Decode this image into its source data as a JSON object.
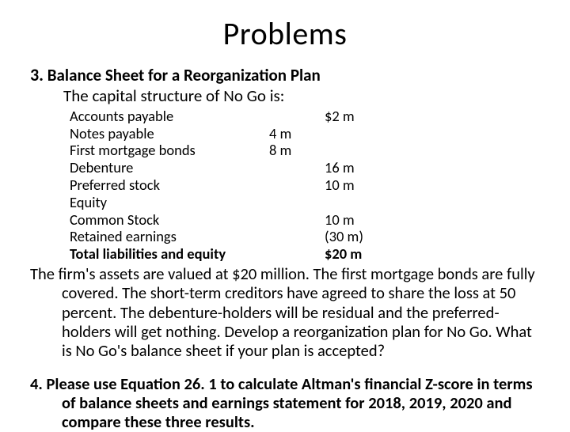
{
  "title": "Problems",
  "problem3": {
    "number": "3.",
    "heading": "Balance Sheet for a Reorganization Plan",
    "subtitle": "The capital structure of No Go is:",
    "rows": [
      {
        "label": "Accounts payable",
        "col1": "",
        "col2": "$2 m"
      },
      {
        "label": "Notes payable",
        "col1": "4 m",
        "col2": ""
      },
      {
        "label": "First mortgage bonds",
        "col1": "8 m",
        "col2": ""
      },
      {
        "label": "Debenture",
        "col1": "",
        "col2": "16 m"
      },
      {
        "label": "Preferred stock",
        "col1": "",
        "col2": "10 m"
      },
      {
        "label": "Equity",
        "col1": "",
        "col2": ""
      },
      {
        "label": "Common Stock",
        "col1": "",
        "col2": "10 m"
      },
      {
        "label": "Retained earnings",
        "col1": "",
        "col2": "(30 m)"
      }
    ],
    "totalRow": {
      "label": "Total liabilities and equity",
      "col1": "",
      "col2": "$20 m"
    },
    "paragraph": "The firm's assets are valued at $20 million. The first mortgage bonds are fully covered. The short-term creditors have agreed to share the loss at 50 percent. The debenture-holders will be residual and the preferred-holders will get nothing. Develop a reorganization plan for No Go. What is No Go's balance sheet if your plan is accepted?"
  },
  "problem4": {
    "number": "4.",
    "text": "Please use Equation 26. 1 to calculate Altman's financial Z-score in terms of balance sheets and earnings statement for 2018, 2019, 2020 and compare these three results."
  },
  "style": {
    "background_color": "#ffffff",
    "text_color": "#000000",
    "title_fontsize": 40,
    "heading_fontsize": 21,
    "body_fontsize": 20.5,
    "table_fontsize": 18.5,
    "font_family": "Calibri"
  }
}
